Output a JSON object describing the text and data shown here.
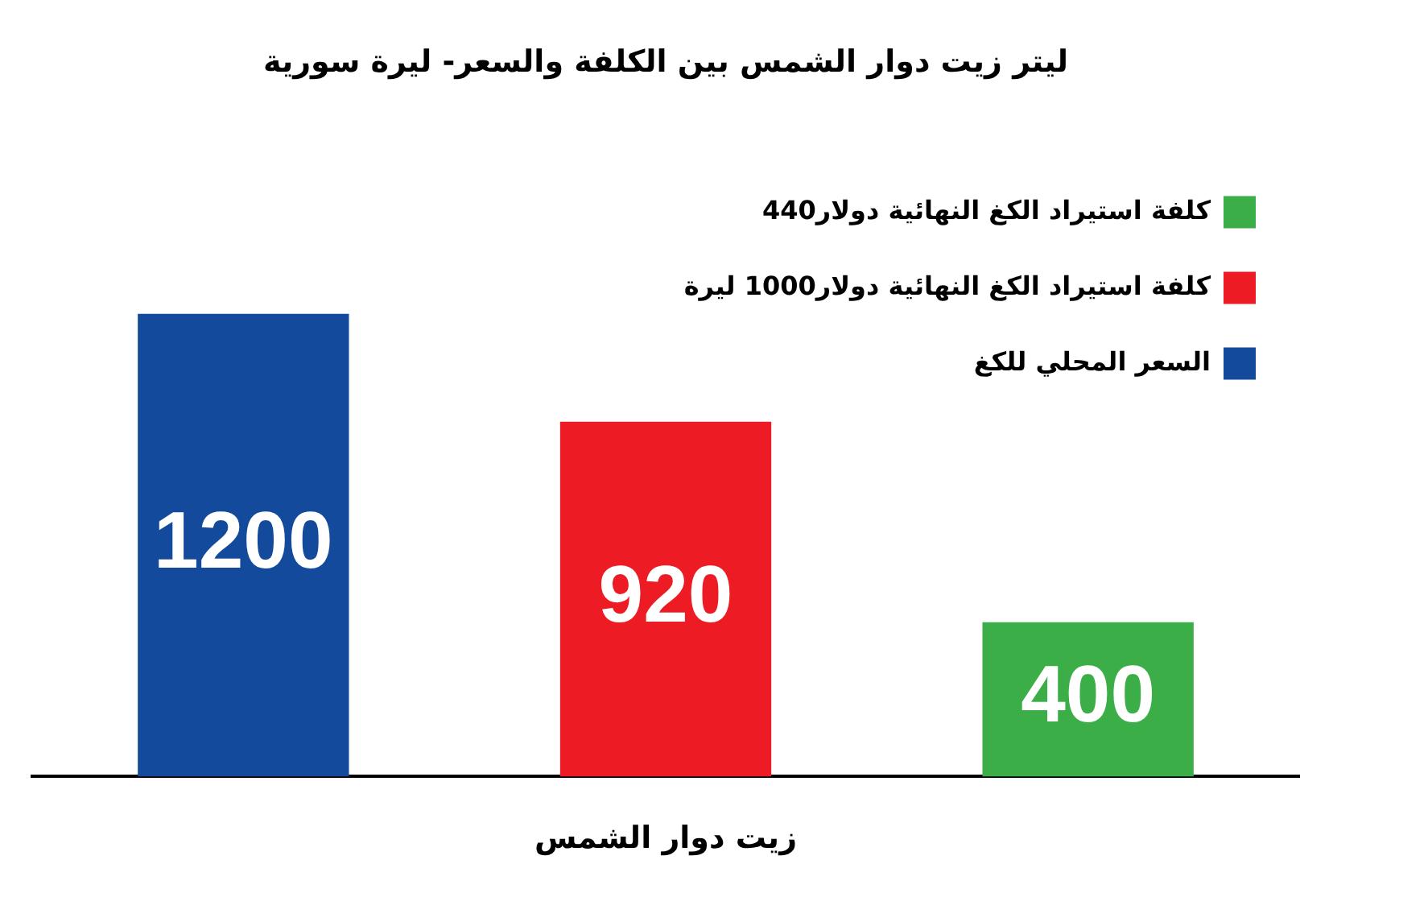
{
  "chart_data": {
    "type": "bar",
    "title": "ليتر زيت دوار الشمس بين الكلفة والسعر- ليرة سورية",
    "xlabel": "زيت دوار الشمس",
    "categories": [
      null,
      null,
      null
    ],
    "series": [
      {
        "name": "السعر المحلي للكغ",
        "color": "#134a9b",
        "values": [
          1200,
          null,
          null
        ]
      },
      {
        "name": "كلفة استيراد الكغ النهائية دولار1000 ليرة",
        "color": "#ed1c24",
        "values": [
          null,
          920,
          null
        ]
      },
      {
        "name": "كلفة استيراد الكغ النهائية دولار440",
        "color": "#3cae48",
        "values": [
          null,
          null,
          400
        ]
      }
    ],
    "stacked": true,
    "legend": "top right",
    "data_labels": true,
    "tick_labels": false
  }
}
